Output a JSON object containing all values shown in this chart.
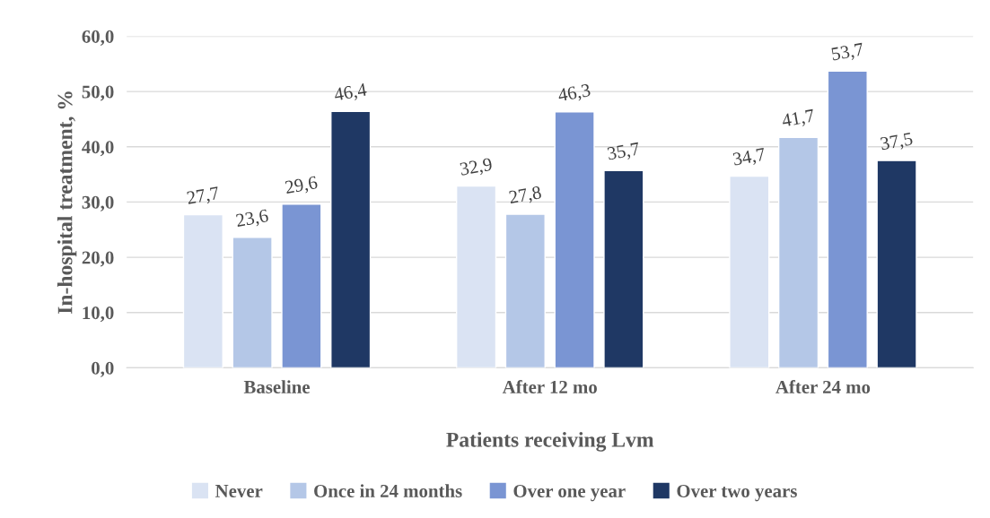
{
  "chart_data": {
    "type": "bar",
    "xlabel": "Patients receiving Lvm",
    "ylabel": "In-hospital treatment, %",
    "categories": [
      "Baseline",
      "After 12 mo",
      "After 24 mo"
    ],
    "series": [
      {
        "name": "Never",
        "color": "#dae3f3",
        "values": [
          27.7,
          32.9,
          34.7
        ],
        "value_labels": [
          "27,7",
          "32,9",
          "34,7"
        ]
      },
      {
        "name": "Once in 24 months",
        "color": "#b4c7e7",
        "values": [
          23.6,
          27.8,
          41.7
        ],
        "value_labels": [
          "23,6",
          "27,8",
          "41,7"
        ]
      },
      {
        "name": "Over one year",
        "color": "#7a95d3",
        "values": [
          29.6,
          46.3,
          53.7
        ],
        "value_labels": [
          "29,6",
          "46,3",
          "53,7"
        ]
      },
      {
        "name": "Over two years",
        "color": "#1f3864",
        "values": [
          46.4,
          35.7,
          37.5
        ],
        "value_labels": [
          "46,4",
          "35,7",
          "37,5"
        ]
      }
    ],
    "ylim": [
      0,
      60
    ],
    "yticks": [
      {
        "value": 0,
        "label": "0,0"
      },
      {
        "value": 10,
        "label": "10,0"
      },
      {
        "value": 20,
        "label": "20,0"
      },
      {
        "value": 30,
        "label": "30,0"
      },
      {
        "value": 40,
        "label": "40,0"
      },
      {
        "value": 50,
        "label": "50,0"
      },
      {
        "value": 60,
        "label": "60,0"
      }
    ],
    "grid": "y",
    "legend": "bottom"
  }
}
